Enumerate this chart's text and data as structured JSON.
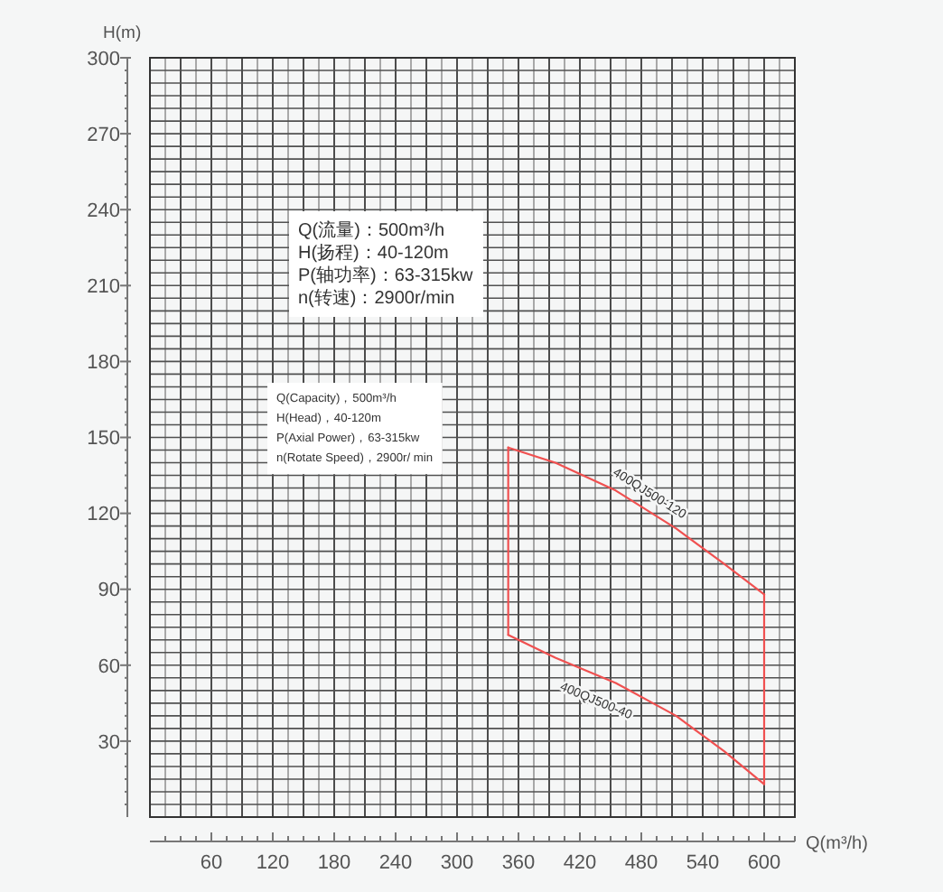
{
  "chart_data": {
    "type": "line",
    "xlabel": "Q(m³/h)",
    "ylabel": "H(m)",
    "series": [
      {
        "name": "400QJ500-120",
        "color": "#f05050",
        "x": [
          350,
          396,
          455,
          514,
          561,
          600
        ],
        "values": [
          146,
          140,
          129,
          114,
          100,
          88
        ]
      },
      {
        "name": "400QJ500-40",
        "color": "#f05050",
        "x": [
          350,
          396,
          455,
          514,
          561,
          600
        ],
        "values": [
          72,
          63,
          53,
          40,
          26,
          13
        ]
      },
      {
        "color": "#f05050",
        "x": [
          350,
          350
        ],
        "values": [
          72,
          146
        ]
      },
      {
        "color": "#f05050",
        "x": [
          600,
          600
        ],
        "values": [
          13,
          88
        ]
      }
    ],
    "xlim": [
      0,
      630
    ],
    "ylim": [
      0,
      300
    ],
    "xticks": [
      {
        "value": 15,
        "label": null
      },
      {
        "value": 30,
        "label": null
      },
      {
        "value": 45,
        "label": null
      },
      60,
      {
        "value": 75,
        "label": null
      },
      {
        "value": 90,
        "label": null
      },
      {
        "value": 105,
        "label": null
      },
      120,
      {
        "value": 135,
        "label": null
      },
      {
        "value": 150,
        "label": null
      },
      {
        "value": 165,
        "label": null
      },
      180,
      {
        "value": 195,
        "label": null
      },
      {
        "value": 210,
        "label": null
      },
      {
        "value": 225,
        "label": null
      },
      240,
      {
        "value": 255,
        "label": null
      },
      {
        "value": 270,
        "label": null
      },
      {
        "value": 285,
        "label": null
      },
      300,
      {
        "value": 315,
        "label": null
      },
      {
        "value": 330,
        "label": null
      },
      {
        "value": 345,
        "label": null
      },
      360,
      {
        "value": 375,
        "label": null
      },
      {
        "value": 390,
        "label": null
      },
      {
        "value": 405,
        "label": null
      },
      420,
      {
        "value": 435,
        "label": null
      },
      {
        "value": 450,
        "label": null
      },
      {
        "value": 465,
        "label": null
      },
      480,
      {
        "value": 495,
        "label": null
      },
      {
        "value": 510,
        "label": null
      },
      {
        "value": 525,
        "label": null
      },
      540,
      {
        "value": 555,
        "label": null
      },
      {
        "value": 570,
        "label": null
      },
      {
        "value": 585,
        "label": null
      },
      600,
      {
        "value": 615,
        "label": null
      },
      {
        "value": 630,
        "label": null
      }
    ],
    "yticks": [
      {
        "value": 5,
        "label": null
      },
      {
        "value": 10,
        "label": null
      },
      {
        "value": 15,
        "label": null
      },
      {
        "value": 20,
        "label": null
      },
      {
        "value": 25,
        "label": null
      },
      30,
      {
        "value": 35,
        "label": null
      },
      {
        "value": 40,
        "label": null
      },
      {
        "value": 45,
        "label": null
      },
      {
        "value": 50,
        "label": null
      },
      {
        "value": 55,
        "label": null
      },
      60,
      {
        "value": 65,
        "label": null
      },
      {
        "value": 70,
        "label": null
      },
      {
        "value": 75,
        "label": null
      },
      {
        "value": 80,
        "label": null
      },
      {
        "value": 85,
        "label": null
      },
      90,
      {
        "value": 95,
        "label": null
      },
      {
        "value": 100,
        "label": null
      },
      {
        "value": 105,
        "label": null
      },
      {
        "value": 110,
        "label": null
      },
      {
        "value": 115,
        "label": null
      },
      120,
      {
        "value": 125,
        "label": null
      },
      {
        "value": 130,
        "label": null
      },
      {
        "value": 135,
        "label": null
      },
      {
        "value": 140,
        "label": null
      },
      {
        "value": 145,
        "label": null
      },
      150,
      {
        "value": 155,
        "label": null
      },
      {
        "value": 160,
        "label": null
      },
      {
        "value": 165,
        "label": null
      },
      {
        "value": 170,
        "label": null
      },
      {
        "value": 175,
        "label": null
      },
      180,
      {
        "value": 185,
        "label": null
      },
      {
        "value": 190,
        "label": null
      },
      {
        "value": 195,
        "label": null
      },
      {
        "value": 200,
        "label": null
      },
      {
        "value": 205,
        "label": null
      },
      210,
      {
        "value": 215,
        "label": null
      },
      {
        "value": 220,
        "label": null
      },
      {
        "value": 225,
        "label": null
      },
      {
        "value": 230,
        "label": null
      },
      {
        "value": 235,
        "label": null
      },
      240,
      {
        "value": 245,
        "label": null
      },
      {
        "value": 250,
        "label": null
      },
      {
        "value": 255,
        "label": null
      },
      {
        "value": 260,
        "label": null
      },
      {
        "value": 265,
        "label": null
      },
      270,
      {
        "value": 275,
        "label": null
      },
      {
        "value": 280,
        "label": null
      },
      {
        "value": 285,
        "label": null
      },
      {
        "value": 290,
        "label": null
      },
      {
        "value": 295,
        "label": null
      },
      300
    ],
    "grid": true,
    "annotations": [
      "Q(流量)：500m³/h\nH(扬程)：40-120m\nP(轴功率)：63-315kw\nn(转速)：2900r/min",
      "Q(Capacity)，500m³/h\nH(Head)，40-120m\nP(Axial Power)，63-315kw\nn(Rotate Speed)，2900r/ min"
    ]
  }
}
